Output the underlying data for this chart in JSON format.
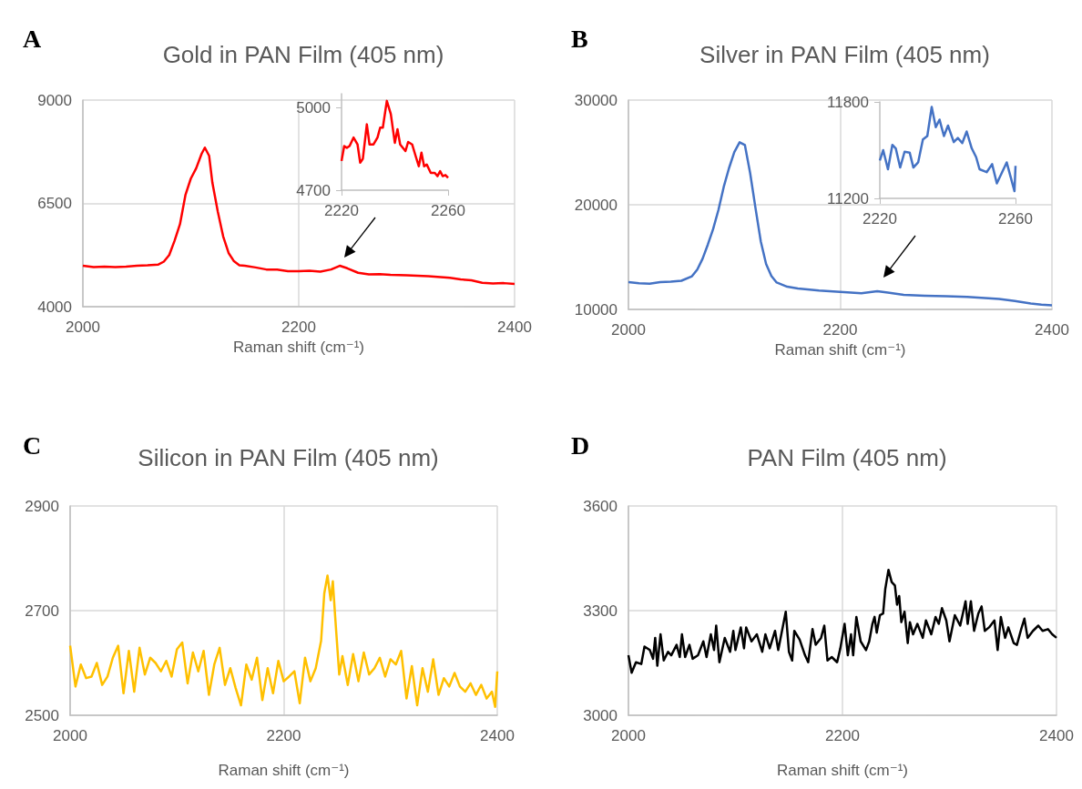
{
  "chart_data": [
    {
      "type": "line",
      "title": "Gold in PAN Film (405 nm)",
      "xlabel": "Raman shift (cm⁻¹)",
      "annotations": [
        "A"
      ],
      "xlim": [
        2000,
        2400
      ],
      "xticks": [
        2000,
        2200,
        2400
      ],
      "ylim": [
        4000,
        9000
      ],
      "yticks": [
        4000,
        6500,
        9000
      ],
      "grid": true,
      "series": [
        {
          "color": "#ff0000",
          "x": [
            2000,
            2010,
            2020,
            2030,
            2040,
            2050,
            2060,
            2070,
            2075,
            2080,
            2085,
            2090,
            2095,
            2100,
            2105,
            2110,
            2113,
            2117,
            2120,
            2125,
            2130,
            2135,
            2140,
            2145,
            2150,
            2160,
            2170,
            2180,
            2190,
            2200,
            2210,
            2220,
            2230,
            2238,
            2245,
            2255,
            2265,
            2275,
            2285,
            2300,
            2320,
            2340,
            2350,
            2360,
            2370,
            2380,
            2390,
            2400
          ],
          "values": [
            4990,
            4960,
            4970,
            4960,
            4970,
            4990,
            5000,
            5020,
            5090,
            5250,
            5600,
            6000,
            6700,
            7100,
            7350,
            7700,
            7850,
            7650,
            7000,
            6300,
            5700,
            5300,
            5100,
            5000,
            4990,
            4950,
            4900,
            4900,
            4860,
            4860,
            4870,
            4850,
            4900,
            4990,
            4930,
            4820,
            4780,
            4790,
            4770,
            4760,
            4740,
            4700,
            4660,
            4640,
            4580,
            4560,
            4570,
            4550
          ]
        }
      ]
    },
    {
      "type": "line",
      "xlim": [
        2220,
        2260
      ],
      "xticks": [
        2220,
        2260
      ],
      "ylim": [
        4700,
        5050
      ],
      "yticks": [
        4700,
        5000
      ],
      "grid": false,
      "series": [
        {
          "color": "#ff0000",
          "x": [
            2220,
            2221,
            2222,
            2223,
            2224.5,
            2226,
            2227,
            2228,
            2229.5,
            2230.5,
            2232,
            2233.5,
            2234.5,
            2235.5,
            2237,
            2238.5,
            2240,
            2241,
            2242,
            2244,
            2245,
            2246.5,
            2248,
            2249,
            2250,
            2251,
            2252,
            2253.5,
            2255,
            2256,
            2257,
            2258,
            2259,
            2260
          ],
          "values": [
            4806,
            4860,
            4854,
            4860,
            4891,
            4866,
            4800,
            4814,
            4939,
            4866,
            4866,
            4891,
            4927,
            4927,
            5024,
            4976,
            4872,
            4921,
            4866,
            4842,
            4875,
            4866,
            4818,
            4787,
            4836,
            4787,
            4793,
            4763,
            4763,
            4751,
            4769,
            4751,
            4755,
            4745
          ]
        }
      ]
    },
    {
      "type": "line",
      "title": "Silver in PAN Film (405 nm)",
      "xlabel": "Raman shift (cm⁻¹)",
      "annotations": [
        "B"
      ],
      "xlim": [
        2000,
        2400
      ],
      "xticks": [
        2000,
        2200,
        2400
      ],
      "ylim": [
        10000,
        30000
      ],
      "yticks": [
        10000,
        20000,
        30000
      ],
      "grid": true,
      "series": [
        {
          "color": "#4472c4",
          "x": [
            2000,
            2010,
            2020,
            2030,
            2040,
            2050,
            2060,
            2065,
            2070,
            2075,
            2080,
            2085,
            2090,
            2095,
            2100,
            2105,
            2110,
            2115,
            2120,
            2125,
            2130,
            2135,
            2140,
            2150,
            2160,
            2180,
            2200,
            2220,
            2235,
            2245,
            2260,
            2280,
            2300,
            2320,
            2350,
            2365,
            2380,
            2390,
            2400
          ],
          "values": [
            12600,
            12500,
            12450,
            12600,
            12650,
            12740,
            13170,
            13800,
            14840,
            16200,
            17680,
            19500,
            21700,
            23500,
            25030,
            25970,
            25700,
            23000,
            19690,
            16500,
            14340,
            13200,
            12570,
            12170,
            12000,
            11800,
            11670,
            11550,
            11740,
            11600,
            11400,
            11300,
            11270,
            11200,
            11000,
            10800,
            10570,
            10450,
            10400
          ]
        }
      ]
    },
    {
      "type": "line",
      "xlim": [
        2220,
        2260
      ],
      "xticks": [
        2220,
        2260
      ],
      "ylim": [
        11200,
        11800
      ],
      "yticks": [
        11200,
        11800
      ],
      "grid": false,
      "series": [
        {
          "color": "#4472c4",
          "x": [
            2220,
            2221,
            2222.4,
            2223.7,
            2224.7,
            2226,
            2227.3,
            2228.8,
            2229.9,
            2231.3,
            2232.7,
            2234,
            2235.3,
            2236.5,
            2237.6,
            2238.9,
            2240.1,
            2241.8,
            2243,
            2244.3,
            2245.6,
            2247.1,
            2248.4,
            2249.4,
            2251.5,
            2253.1,
            2254.5,
            2257.4,
            2259.7,
            2260
          ],
          "values": [
            11435,
            11500,
            11381,
            11533,
            11511,
            11392,
            11490,
            11485,
            11392,
            11424,
            11566,
            11588,
            11769,
            11643,
            11690,
            11588,
            11653,
            11550,
            11576,
            11544,
            11616,
            11511,
            11456,
            11381,
            11363,
            11413,
            11293,
            11424,
            11245,
            11402
          ]
        }
      ]
    },
    {
      "type": "line",
      "title": "Silicon in PAN Film (405 nm)",
      "xlabel": "Raman shift (cm⁻¹)",
      "annotations": [
        "C"
      ],
      "xlim": [
        2000,
        2400
      ],
      "xticks": [
        2000,
        2200,
        2400
      ],
      "ylim": [
        2500,
        2900
      ],
      "yticks": [
        2500,
        2700,
        2900
      ],
      "grid": true,
      "series": [
        {
          "color": "#ffc000",
          "x": [
            2000,
            2005,
            2010,
            2015,
            2020,
            2025,
            2030,
            2035,
            2040,
            2045,
            2050,
            2055,
            2060,
            2065,
            2070,
            2075,
            2080,
            2085,
            2090,
            2095,
            2100,
            2105,
            2110,
            2115,
            2120,
            2125,
            2130,
            2135,
            2140,
            2145,
            2150,
            2155,
            2160,
            2165,
            2170,
            2175,
            2180,
            2185,
            2190,
            2195,
            2200,
            2205,
            2210,
            2215,
            2220,
            2225,
            2230,
            2235,
            2238,
            2241,
            2244,
            2246,
            2248,
            2250,
            2252,
            2255,
            2260,
            2265,
            2270,
            2275,
            2280,
            2285,
            2290,
            2295,
            2300,
            2305,
            2310,
            2315,
            2320,
            2325,
            2330,
            2335,
            2340,
            2345,
            2350,
            2355,
            2360,
            2365,
            2370,
            2375,
            2380,
            2385,
            2390,
            2395,
            2398,
            2400
          ],
          "values": [
            2633,
            2555,
            2597,
            2571,
            2574,
            2600,
            2558,
            2574,
            2610,
            2633,
            2542,
            2623,
            2545,
            2629,
            2578,
            2610,
            2600,
            2584,
            2604,
            2574,
            2626,
            2639,
            2561,
            2620,
            2584,
            2623,
            2539,
            2597,
            2629,
            2558,
            2590,
            2552,
            2519,
            2597,
            2568,
            2610,
            2529,
            2590,
            2542,
            2604,
            2565,
            2574,
            2584,
            2523,
            2610,
            2565,
            2590,
            2642,
            2733,
            2767,
            2720,
            2756,
            2694,
            2636,
            2578,
            2613,
            2558,
            2617,
            2565,
            2620,
            2578,
            2590,
            2610,
            2574,
            2607,
            2597,
            2623,
            2532,
            2594,
            2519,
            2590,
            2545,
            2607,
            2539,
            2571,
            2555,
            2581,
            2555,
            2545,
            2561,
            2539,
            2558,
            2532,
            2545,
            2516,
            2584
          ]
        }
      ]
    },
    {
      "type": "line",
      "title": "PAN Film (405 nm)",
      "xlabel": "Raman shift (cm⁻¹)",
      "annotations": [
        "D"
      ],
      "xlim": [
        2000,
        2400
      ],
      "xticks": [
        2000,
        2200,
        2400
      ],
      "ylim": [
        3000,
        3600
      ],
      "yticks": [
        3000,
        3300,
        3600
      ],
      "grid": true,
      "series": [
        {
          "color": "#000000",
          "x": [
            2000,
            2003,
            2007,
            2012,
            2015,
            2020,
            2023,
            2025,
            2027,
            2030,
            2033,
            2037,
            2040,
            2045,
            2048,
            2050,
            2053,
            2057,
            2060,
            2065,
            2070,
            2073,
            2077,
            2080,
            2082,
            2085,
            2090,
            2095,
            2098,
            2100,
            2105,
            2108,
            2110,
            2115,
            2120,
            2125,
            2128,
            2132,
            2137,
            2140,
            2147,
            2150,
            2153,
            2155,
            2160,
            2165,
            2168,
            2172,
            2175,
            2180,
            2183,
            2186,
            2190,
            2195,
            2198,
            2202,
            2205,
            2208,
            2210,
            2213,
            2217,
            2222,
            2225,
            2228,
            2230,
            2232,
            2235,
            2238,
            2240,
            2243,
            2246,
            2249,
            2251,
            2253,
            2255,
            2258,
            2261,
            2263,
            2266,
            2270,
            2275,
            2278,
            2283,
            2287,
            2290,
            2293,
            2297,
            2300,
            2305,
            2310,
            2315,
            2317,
            2320,
            2323,
            2327,
            2330,
            2333,
            2337,
            2342,
            2345,
            2348,
            2352,
            2355,
            2360,
            2363,
            2367,
            2370,
            2373,
            2378,
            2383,
            2387,
            2392,
            2396,
            2400
          ],
          "values": [
            3172,
            3122,
            3152,
            3147,
            3197,
            3187,
            3162,
            3222,
            3142,
            3232,
            3157,
            3182,
            3172,
            3202,
            3167,
            3232,
            3167,
            3202,
            3162,
            3172,
            3212,
            3167,
            3232,
            3187,
            3257,
            3152,
            3222,
            3182,
            3242,
            3187,
            3252,
            3192,
            3252,
            3212,
            3232,
            3182,
            3232,
            3192,
            3242,
            3187,
            3297,
            3182,
            3157,
            3242,
            3217,
            3172,
            3152,
            3247,
            3202,
            3222,
            3257,
            3157,
            3167,
            3152,
            3192,
            3262,
            3172,
            3232,
            3172,
            3282,
            3212,
            3187,
            3212,
            3262,
            3282,
            3237,
            3287,
            3292,
            3362,
            3417,
            3382,
            3372,
            3317,
            3342,
            3267,
            3297,
            3207,
            3267,
            3232,
            3262,
            3222,
            3272,
            3232,
            3282,
            3262,
            3307,
            3272,
            3212,
            3287,
            3257,
            3327,
            3262,
            3327,
            3242,
            3292,
            3312,
            3242,
            3252,
            3272,
            3187,
            3282,
            3222,
            3252,
            3207,
            3202,
            3247,
            3277,
            3222,
            3242,
            3257,
            3242,
            3247,
            3232,
            3222
          ]
        }
      ]
    }
  ]
}
